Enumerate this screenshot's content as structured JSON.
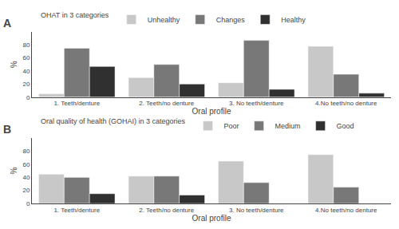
{
  "chart_data": [
    {
      "type": "bar",
      "title": "A",
      "legend_title": "OHAT in 3 categories",
      "xlabel": "Oral profile",
      "ylabel": "%",
      "categories": [
        "1. Teeth/denture",
        "2. Teeth/no denture",
        "3. No teeth/denture",
        "4.No teeth/no denture"
      ],
      "series": [
        {
          "name": "Unhealthy",
          "color": "#c8c8c8",
          "values": [
            5,
            30,
            22,
            78
          ]
        },
        {
          "name": "Changes",
          "color": "#787878",
          "values": [
            75,
            50,
            87,
            35
          ]
        },
        {
          "name": "Healthy",
          "color": "#303030",
          "values": [
            47,
            20,
            12,
            6
          ]
        }
      ],
      "ylim": [
        0,
        100
      ],
      "yticks": [
        0,
        20,
        40,
        60,
        80
      ],
      "grid": false,
      "legend": "top"
    },
    {
      "type": "bar",
      "title": "B",
      "legend_title": "Oral quality of health (GOHAI) in 3 categories",
      "xlabel": "Oral profile",
      "ylabel": "%",
      "categories": [
        "1. Teeth/denture",
        "2. Teeth/no denture",
        "3. No teeth/denture",
        "4.No teeth/no denture"
      ],
      "series": [
        {
          "name": "Poor",
          "color": "#c8c8c8",
          "values": [
            45,
            42,
            65,
            75
          ]
        },
        {
          "name": "Medium",
          "color": "#787878",
          "values": [
            40,
            42,
            32,
            25
          ]
        },
        {
          "name": "Good",
          "color": "#303030",
          "values": [
            15,
            13,
            0,
            0
          ]
        }
      ],
      "ylim": [
        0,
        100
      ],
      "yticks": [
        0,
        20,
        40,
        60,
        80
      ],
      "grid": false,
      "legend": "top"
    }
  ]
}
